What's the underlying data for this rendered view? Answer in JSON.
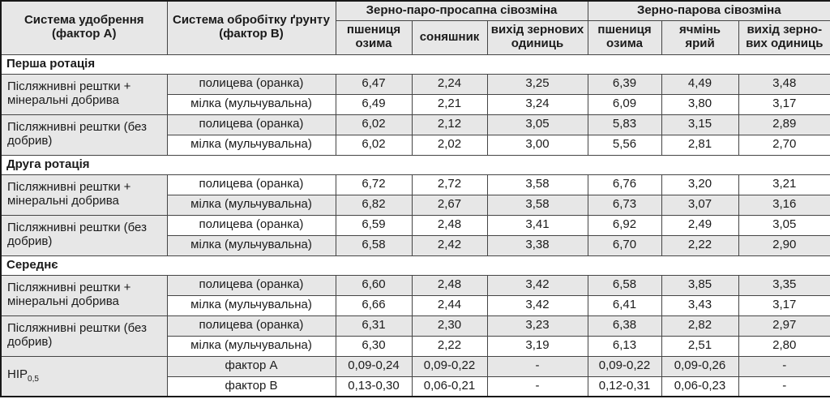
{
  "colors": {
    "shaded_row_bg": "#e7e7e7",
    "header_bg": "#e7e7e7",
    "border": "#454545",
    "text": "#1b1b1b"
  },
  "table": {
    "header": {
      "col_a": "Система удобрення (фактор А)",
      "col_b": "Система обробітку ґрунту (фактор В)",
      "groups": [
        {
          "label": "Зерно-паро-просапна сівозміна",
          "cols": [
            "пшениця озима",
            "соняшник",
            "вихід зернових одиниць"
          ]
        },
        {
          "label": "Зерно-парова сівозміна",
          "cols": [
            "пшениця озима",
            "ячмінь ярий",
            "вихід зерно-вих одиниць"
          ]
        }
      ]
    },
    "sections": [
      {
        "title": "Перша ротація",
        "groups": [
          {
            "factor_a": "Післяжнивні рештки + мінеральні добрива",
            "rows": [
              {
                "factor_b": "полицева (оранка)",
                "shaded": true,
                "values": [
                  "6,47",
                  "2,24",
                  "3,25",
                  "6,39",
                  "4,49",
                  "3,48"
                ]
              },
              {
                "factor_b": "мілка (мульчувальна)",
                "shaded": false,
                "values": [
                  "6,49",
                  "2,21",
                  "3,24",
                  "6,09",
                  "3,80",
                  "3,17"
                ]
              }
            ]
          },
          {
            "factor_a": "Післяжнивні рештки (без добрив)",
            "rows": [
              {
                "factor_b": "полицева (оранка)",
                "shaded": true,
                "values": [
                  "6,02",
                  "2,12",
                  "3,05",
                  "5,83",
                  "3,15",
                  "2,89"
                ]
              },
              {
                "factor_b": "мілка (мульчувальна)",
                "shaded": false,
                "values": [
                  "6,02",
                  "2,02",
                  "3,00",
                  "5,56",
                  "2,81",
                  "2,70"
                ]
              }
            ]
          }
        ]
      },
      {
        "title": "Друга ротація",
        "groups": [
          {
            "factor_a": "Післяжнивні рештки + мінеральні добрива",
            "rows": [
              {
                "factor_b": "полицева (оранка)",
                "shaded": false,
                "values": [
                  "6,72",
                  "2,72",
                  "3,58",
                  "6,76",
                  "3,20",
                  "3,21"
                ]
              },
              {
                "factor_b": "мілка (мульчувальна)",
                "shaded": true,
                "values": [
                  "6,82",
                  "2,67",
                  "3,58",
                  "6,73",
                  "3,07",
                  "3,16"
                ]
              }
            ]
          },
          {
            "factor_a": "Післяжнивні рештки (без добрив)",
            "rows": [
              {
                "factor_b": "полицева (оранка)",
                "shaded": false,
                "values": [
                  "6,59",
                  "2,48",
                  "3,41",
                  "6,92",
                  "2,49",
                  "3,05"
                ]
              },
              {
                "factor_b": "мілка (мульчувальна)",
                "shaded": true,
                "values": [
                  "6,58",
                  "2,42",
                  "3,38",
                  "6,70",
                  "2,22",
                  "2,90"
                ]
              }
            ]
          }
        ]
      },
      {
        "title": "Середнє",
        "groups": [
          {
            "factor_a": "Післяжнивні рештки + мінеральні добрива",
            "rows": [
              {
                "factor_b": "полицева (оранка)",
                "shaded": true,
                "values": [
                  "6,60",
                  "2,48",
                  "3,42",
                  "6,58",
                  "3,85",
                  "3,35"
                ]
              },
              {
                "factor_b": "мілка (мульчувальна)",
                "shaded": false,
                "values": [
                  "6,66",
                  "2,44",
                  "3,42",
                  "6,41",
                  "3,43",
                  "3,17"
                ]
              }
            ]
          },
          {
            "factor_a": "Післяжнивні рештки (без добрив)",
            "rows": [
              {
                "factor_b": "полицева (оранка)",
                "shaded": true,
                "values": [
                  "6,31",
                  "2,30",
                  "3,23",
                  "6,38",
                  "2,82",
                  "2,97"
                ]
              },
              {
                "factor_b": "мілка (мульчувальна)",
                "shaded": false,
                "values": [
                  "6,30",
                  "2,22",
                  "3,19",
                  "6,13",
                  "2,51",
                  "2,80"
                ]
              }
            ]
          }
        ]
      }
    ],
    "footer": {
      "label": "НІР",
      "label_sub": "0,5",
      "rows": [
        {
          "factor_b": "фактор А",
          "shaded": true,
          "values": [
            "0,09-0,24",
            "0,09-0,22",
            "-",
            "0,09-0,22",
            "0,09-0,26",
            "-"
          ]
        },
        {
          "factor_b": "фактор В",
          "shaded": false,
          "values": [
            "0,13-0,30",
            "0,06-0,21",
            "-",
            "0,12-0,31",
            "0,06-0,23",
            "-"
          ]
        }
      ]
    }
  }
}
